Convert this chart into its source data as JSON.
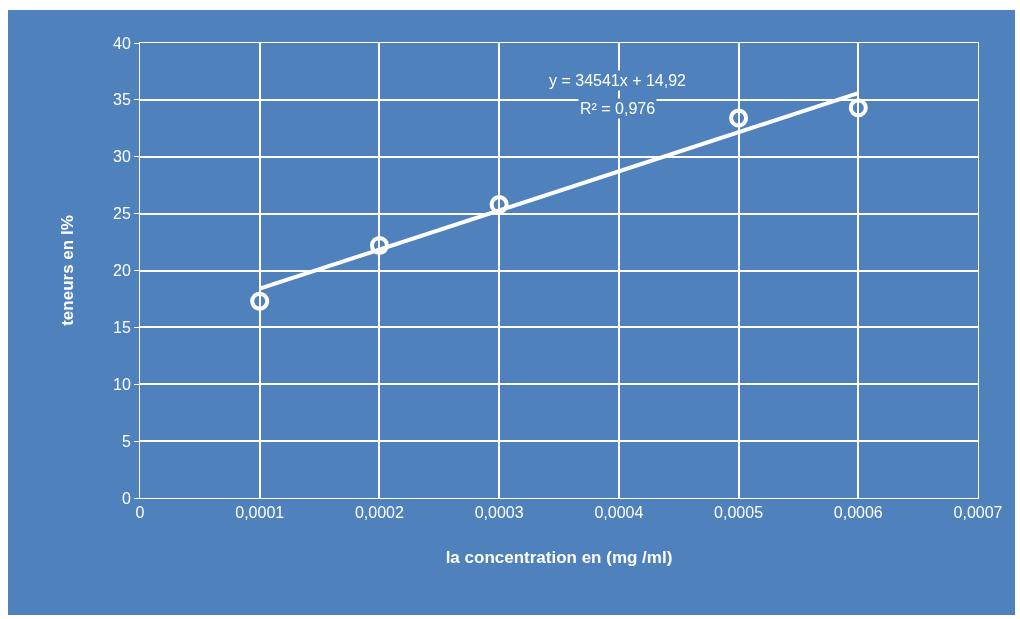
{
  "chart_data": {
    "type": "scatter",
    "xlabel": "la concentration en (mg /ml)",
    "ylabel": "teneurs en l%",
    "series": [
      {
        "color": "#ffffff",
        "marker": "circle",
        "x": [
          0.0001,
          0.0002,
          0.0003,
          0.0005,
          0.0006
        ],
        "values": [
          17.3,
          22.2,
          25.8,
          33.4,
          34.3
        ]
      },
      {
        "type": "line",
        "color": "#ffffff",
        "marker": "none",
        "line_style": "solid",
        "x": [
          0.0001,
          0.0006
        ],
        "values": [
          18.4,
          35.6
        ]
      }
    ],
    "xlim": [
      0,
      0.0007
    ],
    "xticks": [
      0,
      {
        "value": 0.0001,
        "label": "0,0001"
      },
      {
        "value": 0.0002,
        "label": "0,0002"
      },
      {
        "value": 0.0003,
        "label": "0,0003"
      },
      {
        "value": 0.0004,
        "label": "0,0004"
      },
      {
        "value": 0.0005,
        "label": "0,0005"
      },
      {
        "value": 0.0006,
        "label": "0,0006"
      },
      {
        "value": 0.0007,
        "label": "0,0007"
      }
    ],
    "ylim": [
      0,
      40
    ],
    "yticks": [
      0,
      5,
      10,
      15,
      20,
      25,
      30,
      35,
      40
    ],
    "annotations": [
      "y = 34541x + 14,92",
      "R² = 0,976"
    ],
    "grid": true
  }
}
